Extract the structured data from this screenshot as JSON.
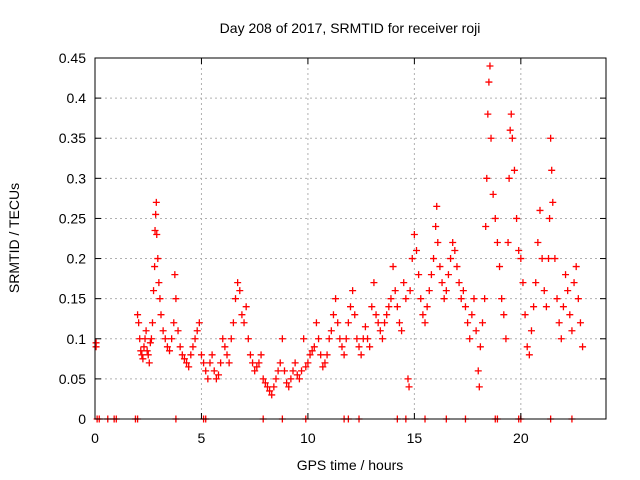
{
  "chart_data": {
    "type": "scatter",
    "title": "Day 208 of 2017, SRMTID for receiver roji",
    "xlabel": "GPS time / hours",
    "ylabel": "SRMTID / TECUs",
    "xlim": [
      0,
      24
    ],
    "ylim": [
      0,
      0.45
    ],
    "grid": true,
    "marker": "plus",
    "x_ticks": [
      {
        "value": 0,
        "label": "0"
      },
      {
        "value": 5,
        "label": "5"
      },
      {
        "value": 10,
        "label": "10"
      },
      {
        "value": 15,
        "label": "15"
      },
      {
        "value": 20,
        "label": "20"
      }
    ],
    "y_ticks": [
      {
        "value": 0,
        "label": "0"
      },
      {
        "value": 0.05,
        "label": "0.05"
      },
      {
        "value": 0.1,
        "label": "0.1"
      },
      {
        "value": 0.15,
        "label": "0.15"
      },
      {
        "value": 0.2,
        "label": "0.2"
      },
      {
        "value": 0.25,
        "label": "0.25"
      },
      {
        "value": 0.3,
        "label": "0.3"
      },
      {
        "value": 0.35,
        "label": "0.35"
      },
      {
        "value": 0.4,
        "label": "0.4"
      },
      {
        "value": 0.45,
        "label": "0.45"
      }
    ],
    "series": [
      {
        "name": "SRMTID",
        "color": "#ff0000",
        "points": [
          [
            0.05,
            0.09
          ],
          [
            0.05,
            0.095
          ],
          [
            2.0,
            0.13
          ],
          [
            2.05,
            0.12
          ],
          [
            2.1,
            0.1
          ],
          [
            2.15,
            0.085
          ],
          [
            2.2,
            0.08
          ],
          [
            2.25,
            0.075
          ],
          [
            2.3,
            0.09
          ],
          [
            2.35,
            0.1
          ],
          [
            2.4,
            0.11
          ],
          [
            2.45,
            0.085
          ],
          [
            2.5,
            0.08
          ],
          [
            2.55,
            0.07
          ],
          [
            2.6,
            0.095
          ],
          [
            2.65,
            0.1
          ],
          [
            2.7,
            0.12
          ],
          [
            2.75,
            0.16
          ],
          [
            2.8,
            0.19
          ],
          [
            2.82,
            0.235
          ],
          [
            2.85,
            0.255
          ],
          [
            2.88,
            0.27
          ],
          [
            2.9,
            0.23
          ],
          [
            2.95,
            0.2
          ],
          [
            3.0,
            0.17
          ],
          [
            3.05,
            0.15
          ],
          [
            3.1,
            0.13
          ],
          [
            3.2,
            0.11
          ],
          [
            3.3,
            0.1
          ],
          [
            3.4,
            0.09
          ],
          [
            3.5,
            0.085
          ],
          [
            3.6,
            0.1
          ],
          [
            3.7,
            0.12
          ],
          [
            3.75,
            0.18
          ],
          [
            3.8,
            0.15
          ],
          [
            3.9,
            0.11
          ],
          [
            4.0,
            0.09
          ],
          [
            4.1,
            0.08
          ],
          [
            4.2,
            0.075
          ],
          [
            4.3,
            0.07
          ],
          [
            4.4,
            0.065
          ],
          [
            4.5,
            0.08
          ],
          [
            4.6,
            0.09
          ],
          [
            4.7,
            0.1
          ],
          [
            4.8,
            0.11
          ],
          [
            4.9,
            0.12
          ],
          [
            5.0,
            0.08
          ],
          [
            5.1,
            0.07
          ],
          [
            5.2,
            0.06
          ],
          [
            5.3,
            0.05
          ],
          [
            5.4,
            0.07
          ],
          [
            5.5,
            0.08
          ],
          [
            5.6,
            0.06
          ],
          [
            5.7,
            0.05
          ],
          [
            5.8,
            0.055
          ],
          [
            5.9,
            0.07
          ],
          [
            6.0,
            0.1
          ],
          [
            6.1,
            0.09
          ],
          [
            6.2,
            0.08
          ],
          [
            6.3,
            0.07
          ],
          [
            6.4,
            0.1
          ],
          [
            6.5,
            0.12
          ],
          [
            6.6,
            0.15
          ],
          [
            6.7,
            0.17
          ],
          [
            6.8,
            0.16
          ],
          [
            6.9,
            0.13
          ],
          [
            7.0,
            0.12
          ],
          [
            7.1,
            0.14
          ],
          [
            7.2,
            0.1
          ],
          [
            7.3,
            0.08
          ],
          [
            7.4,
            0.07
          ],
          [
            7.5,
            0.06
          ],
          [
            7.6,
            0.065
          ],
          [
            7.7,
            0.07
          ],
          [
            7.8,
            0.08
          ],
          [
            7.9,
            0.05
          ],
          [
            8.0,
            0.045
          ],
          [
            8.1,
            0.04
          ],
          [
            8.2,
            0.035
          ],
          [
            8.3,
            0.03
          ],
          [
            8.4,
            0.04
          ],
          [
            8.5,
            0.05
          ],
          [
            8.6,
            0.06
          ],
          [
            8.7,
            0.07
          ],
          [
            8.8,
            0.1
          ],
          [
            8.9,
            0.06
          ],
          [
            9.0,
            0.045
          ],
          [
            9.1,
            0.04
          ],
          [
            9.2,
            0.05
          ],
          [
            9.3,
            0.06
          ],
          [
            9.4,
            0.07
          ],
          [
            9.5,
            0.055
          ],
          [
            9.6,
            0.05
          ],
          [
            9.7,
            0.06
          ],
          [
            9.8,
            0.1
          ],
          [
            9.9,
            0.065
          ],
          [
            10.0,
            0.07
          ],
          [
            10.1,
            0.08
          ],
          [
            10.2,
            0.085
          ],
          [
            10.3,
            0.09
          ],
          [
            10.4,
            0.12
          ],
          [
            10.5,
            0.1
          ],
          [
            10.6,
            0.08
          ],
          [
            10.7,
            0.065
          ],
          [
            10.8,
            0.07
          ],
          [
            10.9,
            0.08
          ],
          [
            11.0,
            0.1
          ],
          [
            11.1,
            0.11
          ],
          [
            11.2,
            0.13
          ],
          [
            11.3,
            0.15
          ],
          [
            11.4,
            0.12
          ],
          [
            11.5,
            0.1
          ],
          [
            11.6,
            0.09
          ],
          [
            11.7,
            0.08
          ],
          [
            11.8,
            0.1
          ],
          [
            11.9,
            0.12
          ],
          [
            12.0,
            0.14
          ],
          [
            12.1,
            0.16
          ],
          [
            12.2,
            0.13
          ],
          [
            12.3,
            0.1
          ],
          [
            12.4,
            0.09
          ],
          [
            12.5,
            0.08
          ],
          [
            12.6,
            0.1
          ],
          [
            12.7,
            0.115
          ],
          [
            12.8,
            0.1
          ],
          [
            12.9,
            0.09
          ],
          [
            13.0,
            0.14
          ],
          [
            13.1,
            0.17
          ],
          [
            13.2,
            0.13
          ],
          [
            13.3,
            0.12
          ],
          [
            13.4,
            0.11
          ],
          [
            13.5,
            0.1
          ],
          [
            13.6,
            0.12
          ],
          [
            13.7,
            0.13
          ],
          [
            13.8,
            0.14
          ],
          [
            13.9,
            0.15
          ],
          [
            14.0,
            0.19
          ],
          [
            14.1,
            0.16
          ],
          [
            14.2,
            0.14
          ],
          [
            14.3,
            0.12
          ],
          [
            14.4,
            0.11
          ],
          [
            14.5,
            0.17
          ],
          [
            14.6,
            0.15
          ],
          [
            14.7,
            0.05
          ],
          [
            14.75,
            0.04
          ],
          [
            14.8,
            0.16
          ],
          [
            14.9,
            0.2
          ],
          [
            15.0,
            0.23
          ],
          [
            15.1,
            0.21
          ],
          [
            15.2,
            0.18
          ],
          [
            15.3,
            0.15
          ],
          [
            15.4,
            0.13
          ],
          [
            15.5,
            0.12
          ],
          [
            15.6,
            0.14
          ],
          [
            15.7,
            0.16
          ],
          [
            15.8,
            0.18
          ],
          [
            15.9,
            0.2
          ],
          [
            16.0,
            0.24
          ],
          [
            16.05,
            0.265
          ],
          [
            16.1,
            0.22
          ],
          [
            16.2,
            0.19
          ],
          [
            16.3,
            0.17
          ],
          [
            16.4,
            0.15
          ],
          [
            16.5,
            0.16
          ],
          [
            16.6,
            0.18
          ],
          [
            16.7,
            0.2
          ],
          [
            16.8,
            0.22
          ],
          [
            16.9,
            0.21
          ],
          [
            17.0,
            0.19
          ],
          [
            17.1,
            0.17
          ],
          [
            17.2,
            0.15
          ],
          [
            17.3,
            0.16
          ],
          [
            17.4,
            0.14
          ],
          [
            17.5,
            0.12
          ],
          [
            17.6,
            0.1
          ],
          [
            17.7,
            0.13
          ],
          [
            17.8,
            0.15
          ],
          [
            17.9,
            0.11
          ],
          [
            18.0,
            0.06
          ],
          [
            18.05,
            0.04
          ],
          [
            18.1,
            0.09
          ],
          [
            18.2,
            0.12
          ],
          [
            18.3,
            0.15
          ],
          [
            18.35,
            0.24
          ],
          [
            18.4,
            0.3
          ],
          [
            18.45,
            0.38
          ],
          [
            18.5,
            0.42
          ],
          [
            18.55,
            0.44
          ],
          [
            18.6,
            0.35
          ],
          [
            18.7,
            0.28
          ],
          [
            18.8,
            0.25
          ],
          [
            18.9,
            0.22
          ],
          [
            19.0,
            0.19
          ],
          [
            19.1,
            0.15
          ],
          [
            19.2,
            0.13
          ],
          [
            19.3,
            0.1
          ],
          [
            19.4,
            0.22
          ],
          [
            19.45,
            0.3
          ],
          [
            19.5,
            0.36
          ],
          [
            19.55,
            0.38
          ],
          [
            19.6,
            0.35
          ],
          [
            19.7,
            0.31
          ],
          [
            19.8,
            0.25
          ],
          [
            19.9,
            0.21
          ],
          [
            20.0,
            0.2
          ],
          [
            20.1,
            0.17
          ],
          [
            20.2,
            0.13
          ],
          [
            20.3,
            0.09
          ],
          [
            20.4,
            0.08
          ],
          [
            20.5,
            0.11
          ],
          [
            20.6,
            0.14
          ],
          [
            20.7,
            0.17
          ],
          [
            20.8,
            0.22
          ],
          [
            20.9,
            0.26
          ],
          [
            21.0,
            0.2
          ],
          [
            21.1,
            0.16
          ],
          [
            21.2,
            0.14
          ],
          [
            21.3,
            0.2
          ],
          [
            21.35,
            0.25
          ],
          [
            21.4,
            0.35
          ],
          [
            21.45,
            0.31
          ],
          [
            21.5,
            0.27
          ],
          [
            21.6,
            0.2
          ],
          [
            21.7,
            0.15
          ],
          [
            21.8,
            0.12
          ],
          [
            21.9,
            0.1
          ],
          [
            22.0,
            0.14
          ],
          [
            22.1,
            0.18
          ],
          [
            22.2,
            0.16
          ],
          [
            22.3,
            0.13
          ],
          [
            22.4,
            0.11
          ],
          [
            22.5,
            0.17
          ],
          [
            22.6,
            0.19
          ],
          [
            22.7,
            0.15
          ],
          [
            22.8,
            0.12
          ],
          [
            22.9,
            0.09
          ],
          [
            0.1,
            0
          ],
          [
            0.2,
            0
          ],
          [
            0.6,
            0
          ],
          [
            0.9,
            0
          ],
          [
            1.0,
            0
          ],
          [
            1.9,
            0
          ],
          [
            2.0,
            0
          ],
          [
            3.8,
            0
          ],
          [
            5.1,
            0
          ],
          [
            5.2,
            0
          ],
          [
            7.9,
            0
          ],
          [
            8.8,
            0
          ],
          [
            9.9,
            0
          ],
          [
            11.7,
            0
          ],
          [
            11.9,
            0
          ],
          [
            12.4,
            0
          ],
          [
            14.2,
            0
          ],
          [
            14.6,
            0
          ],
          [
            15.5,
            0
          ],
          [
            16.5,
            0
          ],
          [
            17.4,
            0
          ],
          [
            18.8,
            0
          ],
          [
            18.9,
            0
          ],
          [
            19.9,
            0
          ],
          [
            20.0,
            0
          ],
          [
            21.4,
            0
          ],
          [
            22.4,
            0
          ]
        ]
      }
    ]
  }
}
